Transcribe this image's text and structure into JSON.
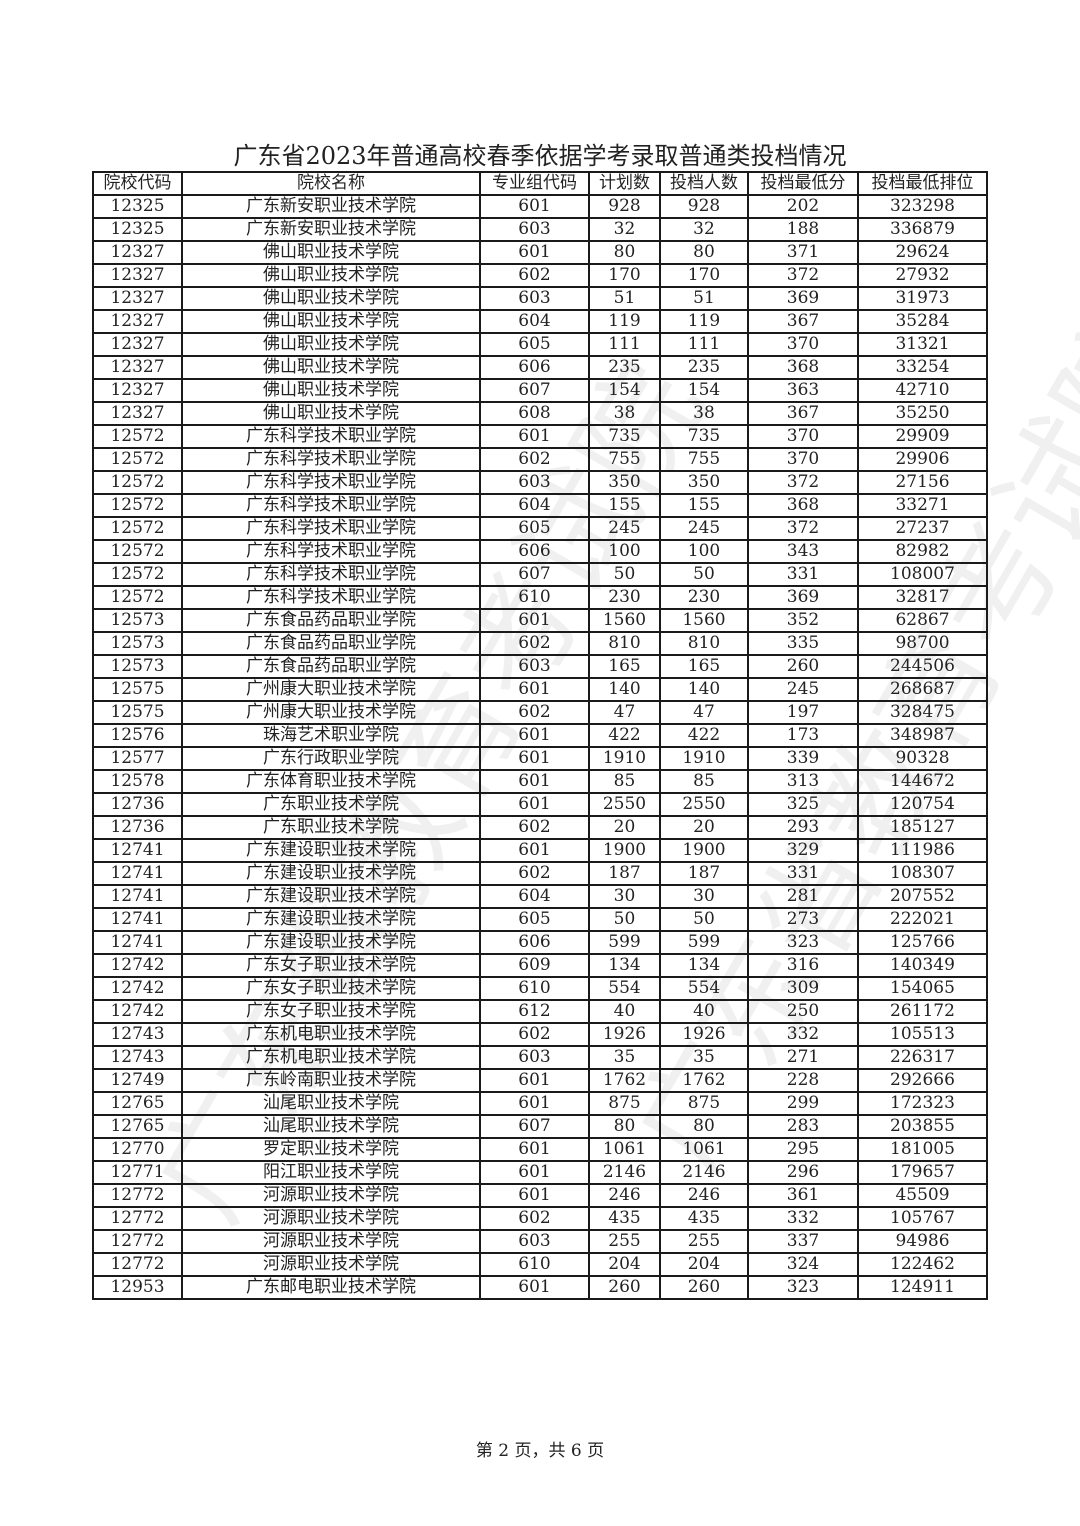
{
  "watermark": "广东省教育考试院",
  "title": "广东省2023年普通高校春季依据学考录取普通类投档情况",
  "columns": [
    "院校代码",
    "院校名称",
    "专业组代码",
    "计划数",
    "投档人数",
    "投档最低分",
    "投档最低排位"
  ],
  "rows": [
    [
      "12325",
      "广东新安职业技术学院",
      "601",
      "928",
      "928",
      "202",
      "323298"
    ],
    [
      "12325",
      "广东新安职业技术学院",
      "603",
      "32",
      "32",
      "188",
      "336879"
    ],
    [
      "12327",
      "佛山职业技术学院",
      "601",
      "80",
      "80",
      "371",
      "29624"
    ],
    [
      "12327",
      "佛山职业技术学院",
      "602",
      "170",
      "170",
      "372",
      "27932"
    ],
    [
      "12327",
      "佛山职业技术学院",
      "603",
      "51",
      "51",
      "369",
      "31973"
    ],
    [
      "12327",
      "佛山职业技术学院",
      "604",
      "119",
      "119",
      "367",
      "35284"
    ],
    [
      "12327",
      "佛山职业技术学院",
      "605",
      "111",
      "111",
      "370",
      "31321"
    ],
    [
      "12327",
      "佛山职业技术学院",
      "606",
      "235",
      "235",
      "368",
      "33254"
    ],
    [
      "12327",
      "佛山职业技术学院",
      "607",
      "154",
      "154",
      "363",
      "42710"
    ],
    [
      "12327",
      "佛山职业技术学院",
      "608",
      "38",
      "38",
      "367",
      "35250"
    ],
    [
      "12572",
      "广东科学技术职业学院",
      "601",
      "735",
      "735",
      "370",
      "29909"
    ],
    [
      "12572",
      "广东科学技术职业学院",
      "602",
      "755",
      "755",
      "370",
      "29906"
    ],
    [
      "12572",
      "广东科学技术职业学院",
      "603",
      "350",
      "350",
      "372",
      "27156"
    ],
    [
      "12572",
      "广东科学技术职业学院",
      "604",
      "155",
      "155",
      "368",
      "33271"
    ],
    [
      "12572",
      "广东科学技术职业学院",
      "605",
      "245",
      "245",
      "372",
      "27237"
    ],
    [
      "12572",
      "广东科学技术职业学院",
      "606",
      "100",
      "100",
      "343",
      "82982"
    ],
    [
      "12572",
      "广东科学技术职业学院",
      "607",
      "50",
      "50",
      "331",
      "108007"
    ],
    [
      "12572",
      "广东科学技术职业学院",
      "610",
      "230",
      "230",
      "369",
      "32817"
    ],
    [
      "12573",
      "广东食品药品职业学院",
      "601",
      "1560",
      "1560",
      "352",
      "62867"
    ],
    [
      "12573",
      "广东食品药品职业学院",
      "602",
      "810",
      "810",
      "335",
      "98700"
    ],
    [
      "12573",
      "广东食品药品职业学院",
      "603",
      "165",
      "165",
      "260",
      "244506"
    ],
    [
      "12575",
      "广州康大职业技术学院",
      "601",
      "140",
      "140",
      "245",
      "268687"
    ],
    [
      "12575",
      "广州康大职业技术学院",
      "602",
      "47",
      "47",
      "197",
      "328475"
    ],
    [
      "12576",
      "珠海艺术职业学院",
      "601",
      "422",
      "422",
      "173",
      "348987"
    ],
    [
      "12577",
      "广东行政职业学院",
      "601",
      "1910",
      "1910",
      "339",
      "90328"
    ],
    [
      "12578",
      "广东体育职业技术学院",
      "601",
      "85",
      "85",
      "313",
      "144672"
    ],
    [
      "12736",
      "广东职业技术学院",
      "601",
      "2550",
      "2550",
      "325",
      "120754"
    ],
    [
      "12736",
      "广东职业技术学院",
      "602",
      "20",
      "20",
      "293",
      "185127"
    ],
    [
      "12741",
      "广东建设职业技术学院",
      "601",
      "1900",
      "1900",
      "329",
      "111986"
    ],
    [
      "12741",
      "广东建设职业技术学院",
      "602",
      "187",
      "187",
      "331",
      "108307"
    ],
    [
      "12741",
      "广东建设职业技术学院",
      "604",
      "30",
      "30",
      "281",
      "207552"
    ],
    [
      "12741",
      "广东建设职业技术学院",
      "605",
      "50",
      "50",
      "273",
      "222021"
    ],
    [
      "12741",
      "广东建设职业技术学院",
      "606",
      "599",
      "599",
      "323",
      "125766"
    ],
    [
      "12742",
      "广东女子职业技术学院",
      "609",
      "134",
      "134",
      "316",
      "140349"
    ],
    [
      "12742",
      "广东女子职业技术学院",
      "610",
      "554",
      "554",
      "309",
      "154065"
    ],
    [
      "12742",
      "广东女子职业技术学院",
      "612",
      "40",
      "40",
      "250",
      "261172"
    ],
    [
      "12743",
      "广东机电职业技术学院",
      "602",
      "1926",
      "1926",
      "332",
      "105513"
    ],
    [
      "12743",
      "广东机电职业技术学院",
      "603",
      "35",
      "35",
      "271",
      "226317"
    ],
    [
      "12749",
      "广东岭南职业技术学院",
      "601",
      "1762",
      "1762",
      "228",
      "292666"
    ],
    [
      "12765",
      "汕尾职业技术学院",
      "601",
      "875",
      "875",
      "299",
      "172323"
    ],
    [
      "12765",
      "汕尾职业技术学院",
      "607",
      "80",
      "80",
      "283",
      "203855"
    ],
    [
      "12770",
      "罗定职业技术学院",
      "601",
      "1061",
      "1061",
      "295",
      "181005"
    ],
    [
      "12771",
      "阳江职业技术学院",
      "601",
      "2146",
      "2146",
      "296",
      "179657"
    ],
    [
      "12772",
      "河源职业技术学院",
      "601",
      "246",
      "246",
      "361",
      "45509"
    ],
    [
      "12772",
      "河源职业技术学院",
      "602",
      "435",
      "435",
      "332",
      "105767"
    ],
    [
      "12772",
      "河源职业技术学院",
      "603",
      "255",
      "255",
      "337",
      "94986"
    ],
    [
      "12772",
      "河源职业技术学院",
      "610",
      "204",
      "204",
      "324",
      "122462"
    ],
    [
      "12953",
      "广东邮电职业技术学院",
      "601",
      "260",
      "260",
      "323",
      "124911"
    ]
  ],
  "footer": "第 2 页，共 6 页"
}
